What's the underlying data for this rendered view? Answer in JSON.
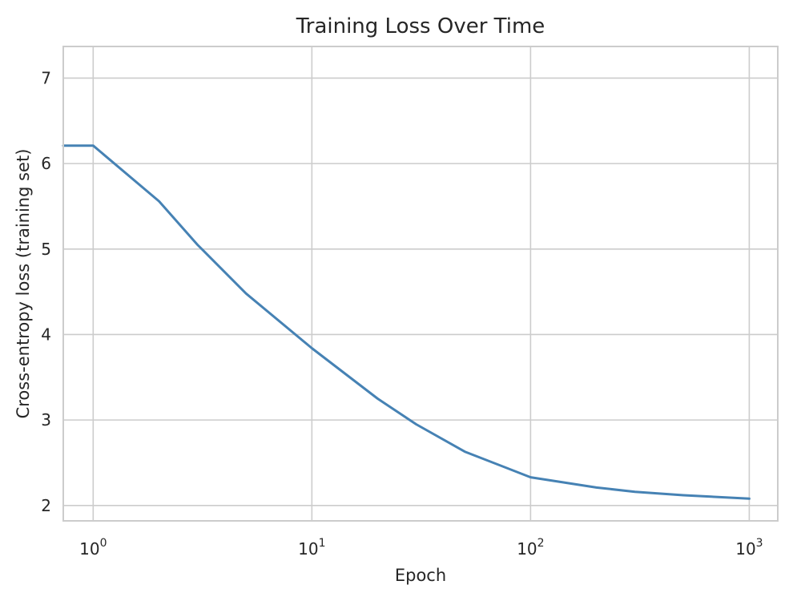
{
  "chart_data": {
    "type": "line",
    "title": "Training Loss Over Time",
    "xlabel": "Epoch",
    "ylabel": "Cross-entropy loss (training set)",
    "xscale": "log",
    "xlim": [
      0.73,
      1350
    ],
    "ylim": [
      1.82,
      7.37
    ],
    "grid": true,
    "legend": "none",
    "x_ticks": [
      {
        "value": 1,
        "label": "10",
        "exp": "0"
      },
      {
        "value": 10,
        "label": "10",
        "exp": "1"
      },
      {
        "value": 100,
        "label": "10",
        "exp": "2"
      },
      {
        "value": 1000,
        "label": "10",
        "exp": "3"
      }
    ],
    "y_ticks": [
      {
        "value": 2,
        "label": "2"
      },
      {
        "value": 3,
        "label": "3"
      },
      {
        "value": 4,
        "label": "4"
      },
      {
        "value": 5,
        "label": "5"
      },
      {
        "value": 6,
        "label": "6"
      },
      {
        "value": 7,
        "label": "7"
      }
    ],
    "series": [
      {
        "color": "#4682b4",
        "x": [
          0.73,
          1,
          2,
          3,
          5,
          10,
          20,
          30,
          50,
          100,
          200,
          300,
          500,
          1000
        ],
        "y": [
          6.21,
          6.21,
          5.56,
          5.05,
          4.48,
          3.84,
          3.25,
          2.95,
          2.63,
          2.33,
          2.21,
          2.16,
          2.12,
          2.08
        ]
      }
    ]
  }
}
